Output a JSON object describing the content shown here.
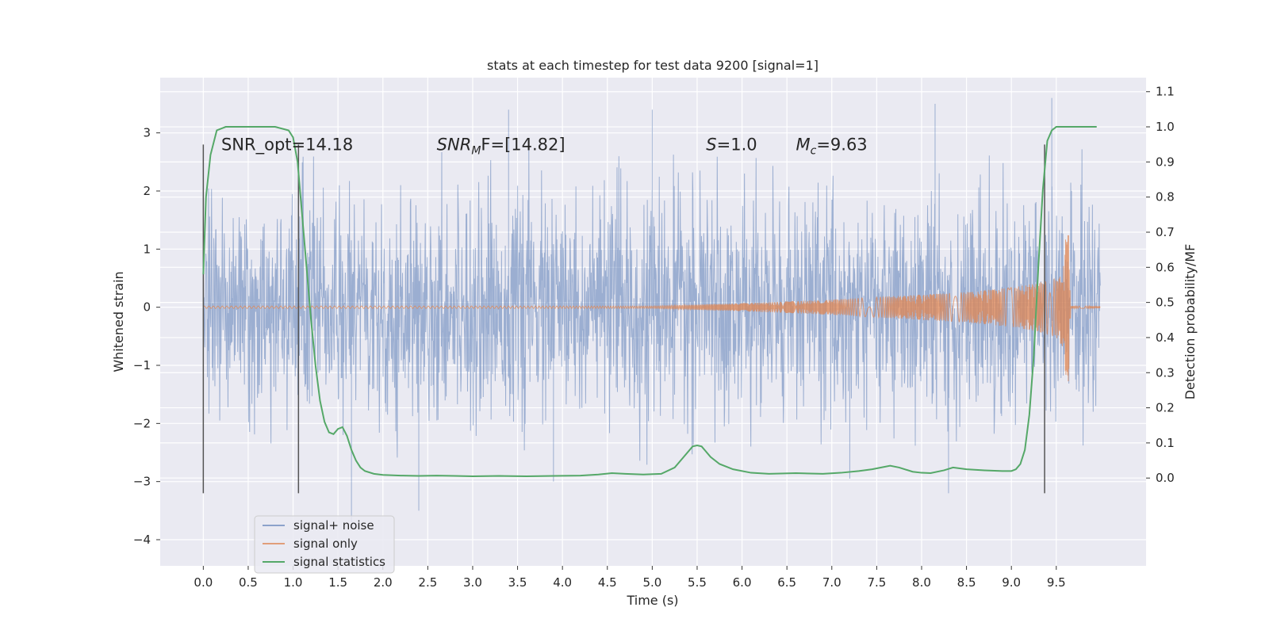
{
  "chart_data": {
    "type": "line",
    "title": "stats at each timestep for test data 9200 [signal=1]",
    "xlabel": "Time (s)",
    "ylabel": "Whitened strain",
    "ylabel_right": "Detection probability/MF",
    "xlim": [
      -0.48,
      10.5
    ],
    "ylim": [
      -4.45,
      3.95
    ],
    "ylim_right": [
      -0.25,
      1.14
    ],
    "xticks": [
      0.0,
      0.5,
      1.0,
      1.5,
      2.0,
      2.5,
      3.0,
      3.5,
      4.0,
      4.5,
      5.0,
      5.5,
      6.0,
      6.5,
      7.0,
      7.5,
      8.0,
      8.5,
      9.0,
      9.5
    ],
    "xtick_labels": [
      "0.0",
      "0.5",
      "1.0",
      "1.5",
      "2.0",
      "2.5",
      "3.0",
      "3.5",
      "4.0",
      "4.5",
      "5.0",
      "5.5",
      "6.0",
      "6.5",
      "7.0",
      "7.5",
      "8.0",
      "8.5",
      "9.0",
      "9.5"
    ],
    "yticks": [
      3,
      2,
      1,
      0,
      -1,
      -2,
      -3,
      -4
    ],
    "ytick_labels": [
      "3",
      "2",
      "1",
      "0",
      "−1",
      "−2",
      "−3",
      "−4"
    ],
    "yticks_right": [
      1.1,
      1.0,
      0.9,
      0.8,
      0.7,
      0.6,
      0.5,
      0.4,
      0.3,
      0.2,
      0.1,
      0.0
    ],
    "ytick_right_labels": [
      "1.1",
      "1.0",
      "0.9",
      "0.8",
      "0.7",
      "0.6",
      "0.5",
      "0.4",
      "0.3",
      "0.2",
      "0.1",
      "0.0"
    ],
    "grid": true,
    "legend_position": "lower-left",
    "colors": {
      "noise": "#4c72b0",
      "signal": "#dd8452",
      "stats": "#55a868",
      "vline": "#555555",
      "background": "#eaeaf2",
      "grid": "#ffffff"
    },
    "series": [
      {
        "name": "signal+ noise",
        "axis": "left",
        "style": "dense-noise",
        "x_range": [
          0.0,
          9.99
        ],
        "typical_range": [
          -1.5,
          1.5
        ],
        "max": 3.6,
        "min": -3.7,
        "peaks": [
          [
            1.65,
            -3.7
          ],
          [
            2.4,
            -3.5
          ],
          [
            3.9,
            -3.0
          ],
          [
            3.4,
            3.4
          ],
          [
            5.0,
            3.4
          ],
          [
            8.15,
            3.5
          ],
          [
            9.45,
            3.6
          ],
          [
            8.3,
            -3.2
          ],
          [
            7.2,
            -2.95
          ]
        ]
      },
      {
        "name": "signal only",
        "axis": "left",
        "style": "chirp-envelope",
        "envelope": [
          [
            0.0,
            0.02
          ],
          [
            5.0,
            0.02
          ],
          [
            6.0,
            0.07
          ],
          [
            7.0,
            0.13
          ],
          [
            8.0,
            0.22
          ],
          [
            8.5,
            0.26
          ],
          [
            9.0,
            0.34
          ],
          [
            9.3,
            0.42
          ],
          [
            9.5,
            0.52
          ],
          [
            9.58,
            0.7
          ],
          [
            9.62,
            1.5
          ],
          [
            9.64,
            1.2
          ],
          [
            9.66,
            0.02
          ],
          [
            9.99,
            0.02
          ]
        ]
      },
      {
        "name": "signal statistics",
        "axis": "right",
        "x": [
          0.0,
          0.03,
          0.08,
          0.15,
          0.25,
          0.4,
          0.6,
          0.8,
          0.95,
          1.0,
          1.05,
          1.1,
          1.15,
          1.2,
          1.25,
          1.3,
          1.35,
          1.4,
          1.45,
          1.5,
          1.55,
          1.6,
          1.65,
          1.7,
          1.75,
          1.8,
          1.9,
          2.0,
          2.2,
          2.4,
          2.6,
          2.8,
          3.0,
          3.3,
          3.6,
          3.9,
          4.2,
          4.4,
          4.55,
          4.7,
          4.9,
          5.1,
          5.25,
          5.35,
          5.45,
          5.5,
          5.55,
          5.65,
          5.75,
          5.9,
          6.1,
          6.3,
          6.6,
          6.9,
          7.1,
          7.3,
          7.45,
          7.55,
          7.65,
          7.75,
          7.9,
          8.0,
          8.1,
          8.25,
          8.35,
          8.5,
          8.7,
          8.9,
          9.0,
          9.05,
          9.1,
          9.15,
          9.2,
          9.25,
          9.3,
          9.35,
          9.4,
          9.45,
          9.5,
          9.6,
          9.7,
          9.8,
          9.9,
          9.95
        ],
        "values": [
          0.58,
          0.8,
          0.92,
          0.99,
          1.0,
          1.0,
          1.0,
          1.0,
          0.99,
          0.97,
          0.9,
          0.75,
          0.6,
          0.45,
          0.32,
          0.22,
          0.16,
          0.13,
          0.125,
          0.14,
          0.145,
          0.12,
          0.08,
          0.05,
          0.03,
          0.02,
          0.012,
          0.009,
          0.007,
          0.006,
          0.007,
          0.006,
          0.005,
          0.006,
          0.005,
          0.006,
          0.007,
          0.01,
          0.014,
          0.012,
          0.01,
          0.012,
          0.03,
          0.06,
          0.09,
          0.093,
          0.09,
          0.06,
          0.04,
          0.025,
          0.015,
          0.012,
          0.014,
          0.012,
          0.015,
          0.02,
          0.025,
          0.03,
          0.035,
          0.03,
          0.018,
          0.015,
          0.014,
          0.022,
          0.03,
          0.025,
          0.022,
          0.02,
          0.02,
          0.025,
          0.04,
          0.08,
          0.18,
          0.35,
          0.6,
          0.82,
          0.96,
          0.99,
          1.0,
          1.0,
          1.0,
          1.0,
          1.0,
          1.0
        ]
      }
    ],
    "vlines": [
      0.0,
      1.06,
      9.37
    ],
    "vline_range": [
      -3.2,
      2.8
    ],
    "annotations": [
      {
        "id": "snr-opt",
        "text": "SNR_opt=14.18",
        "x": 0.2,
        "y": 2.8
      },
      {
        "id": "snr-mf",
        "text": "[14.82]",
        "x": 2.6,
        "y": 2.8,
        "math": {
          "base": "SNR",
          "sub": "M",
          "tail": "F="
        }
      },
      {
        "id": "s-value",
        "text": "=1.0",
        "x": 5.6,
        "y": 2.8,
        "math": {
          "base": "S",
          "sub": "",
          "tail": ""
        }
      },
      {
        "id": "mc-value",
        "text": "=9.63",
        "x": 6.6,
        "y": 2.8,
        "math": {
          "base": "M",
          "sub": "c",
          "tail": ""
        }
      }
    ]
  }
}
